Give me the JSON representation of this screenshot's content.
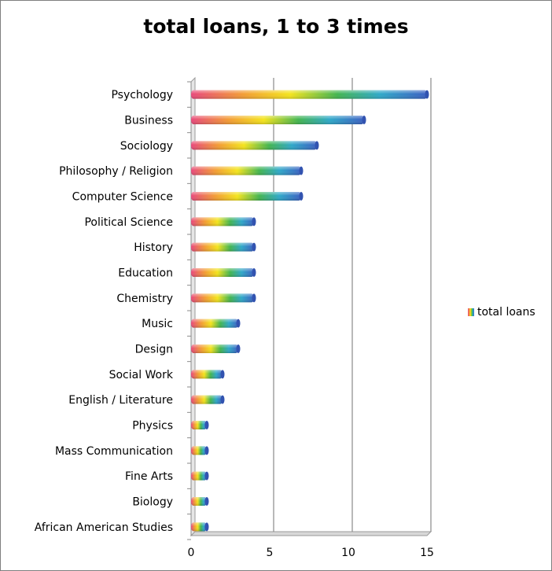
{
  "chart_data": {
    "type": "bar",
    "orientation": "horizontal",
    "title": "total loans, 1 to 3 times",
    "categories": [
      "Psychology",
      "Business",
      "Sociology",
      "Philosophy / Religion",
      "Computer Science",
      "Political Science",
      "History",
      "Education",
      "Chemistry",
      "Music",
      "Design",
      "Social Work",
      "English / Literature",
      "Physics",
      "Mass Communication",
      "Fine Arts",
      "Biology",
      "African American Studies"
    ],
    "series": [
      {
        "name": "total loans",
        "values": [
          15,
          11,
          8,
          7,
          7,
          4,
          4,
          4,
          4,
          3,
          3,
          2,
          2,
          1,
          1,
          1,
          1,
          1
        ]
      }
    ],
    "xlim": [
      0,
      15
    ],
    "xticks": [
      "0",
      "5",
      "10",
      "15"
    ],
    "grid": true,
    "legend_position": "right",
    "colors": [
      "#e8487b",
      "#f39c33",
      "#f4e41c",
      "#42b54f",
      "#2ea8c8",
      "#3a5fc2"
    ]
  }
}
